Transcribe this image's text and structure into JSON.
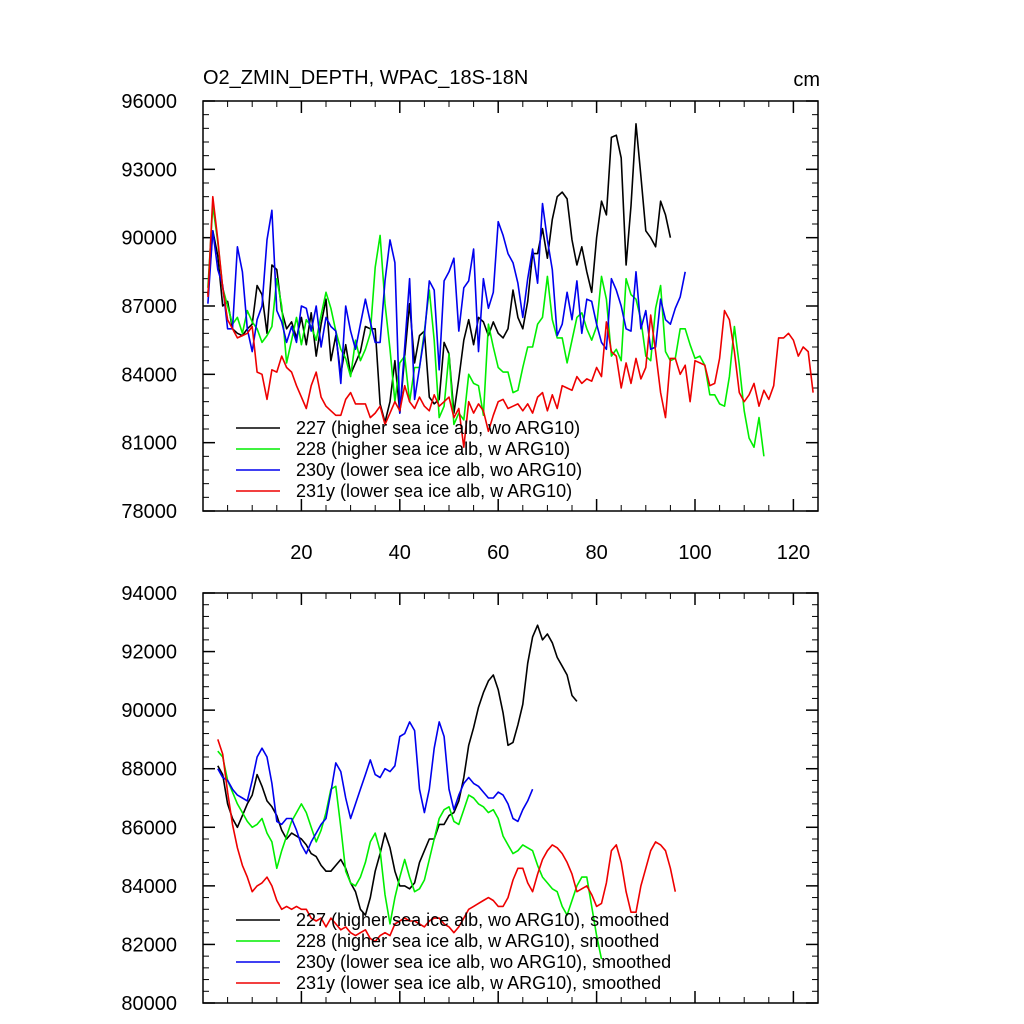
{
  "figure": {
    "title": "O2_ZMIN_DEPTH, WPAC_18S-18N",
    "units": "cm"
  },
  "colors": {
    "227": "#000000",
    "228": "#00ee00",
    "230y": "#0000ee",
    "231y": "#ee0000"
  },
  "chart_data": [
    {
      "type": "line",
      "panel": "top",
      "title": "O2_ZMIN_DEPTH, WPAC_18S-18N",
      "units": "cm",
      "xlim": [
        0,
        125
      ],
      "ylim": [
        78000,
        96000
      ],
      "xticks": [
        20,
        40,
        60,
        80,
        100,
        120
      ],
      "yticks": [
        78000,
        81000,
        84000,
        87000,
        90000,
        93000,
        96000
      ],
      "legend_position": "bottom-left",
      "series": [
        {
          "key": "227",
          "name": "227 (higher sea ice alb, wo ARG10)",
          "color": "#000000",
          "x_start": 1,
          "values": [
            87500,
            90300,
            89200,
            87000,
            87200,
            86000,
            85800,
            85700,
            86000,
            86200,
            87900,
            87500,
            85800,
            88800,
            88600,
            86800,
            86000,
            86300,
            85600,
            86500,
            85300,
            86700,
            84800,
            86200,
            87300,
            84600,
            85700,
            84000,
            85300,
            84000,
            84500,
            85000,
            86100,
            86000,
            86000,
            82700,
            81900,
            82800,
            84600,
            82300,
            84800,
            87100,
            84500,
            85700,
            85900,
            83000,
            82700,
            82900,
            85400,
            84900,
            82300,
            83800,
            85500,
            86400,
            85300,
            86500,
            86300,
            85700,
            86300,
            85800,
            85600,
            86000,
            87700,
            86500,
            86000,
            87200,
            89300,
            89300,
            90400,
            89100,
            90800,
            91800,
            92000,
            91700,
            89900,
            88800,
            89600,
            88500,
            87600,
            90000,
            91600,
            91000,
            94400,
            94500,
            93500,
            88800,
            91400,
            95000,
            92700,
            90300,
            90000,
            89600,
            91600,
            91000,
            90000
          ]
        },
        {
          "key": "228",
          "name": "228 (higher sea ice alb, w ARG10)",
          "color": "#00ee00",
          "x_start": 1,
          "values": [
            87800,
            91400,
            89800,
            87800,
            87000,
            86200,
            86500,
            85800,
            86800,
            86300,
            86000,
            85400,
            85700,
            86100,
            88200,
            87000,
            84500,
            85500,
            86500,
            85300,
            86400,
            86100,
            85500,
            86600,
            87600,
            86900,
            85900,
            85100,
            84700,
            83900,
            85500,
            84600,
            85100,
            85800,
            88700,
            90100,
            87100,
            85100,
            82800,
            84500,
            84800,
            82800,
            84300,
            84300,
            85900,
            87700,
            85500,
            82100,
            82600,
            84900,
            81800,
            82300,
            82000,
            84000,
            83600,
            83500,
            82200,
            86200,
            85200,
            84300,
            84100,
            84100,
            83200,
            83300,
            84300,
            85200,
            85200,
            86200,
            86500,
            88300,
            86400,
            85600,
            85600,
            84500,
            85500,
            86500,
            86700,
            86000,
            85500,
            86100,
            88300,
            87300,
            84800,
            85100,
            84600,
            88200,
            87500,
            87300,
            86400,
            84800,
            84600,
            86900,
            87900,
            85000,
            84600,
            84700,
            86000,
            86000,
            85300,
            84700,
            84800,
            84400,
            83100,
            83100,
            82700,
            82600,
            83900,
            86100,
            84400,
            82400,
            81200,
            80800,
            82100,
            80400
          ]
        },
        {
          "key": "230y",
          "name": "230y (lower sea ice alb, wo ARG10)",
          "color": "#0000ee",
          "x_start": 1,
          "values": [
            87100,
            90300,
            88600,
            87900,
            86000,
            86000,
            89600,
            88500,
            86000,
            85000,
            86400,
            87000,
            89900,
            91200,
            86800,
            86300,
            85400,
            86100,
            85400,
            87000,
            86900,
            85900,
            87000,
            85200,
            86500,
            86100,
            85900,
            83600,
            87000,
            85900,
            85100,
            86200,
            87300,
            86300,
            85400,
            85400,
            88100,
            89900,
            88900,
            82300,
            85200,
            88200,
            82900,
            84300,
            85700,
            88100,
            87700,
            84200,
            88100,
            88500,
            89100,
            85900,
            87800,
            88100,
            89500,
            85000,
            88200,
            86900,
            87600,
            90700,
            90100,
            89300,
            88900,
            88000,
            86500,
            88200,
            89500,
            88000,
            91500,
            89900,
            88600,
            85700,
            86200,
            87600,
            86400,
            88100,
            85800,
            87300,
            87200,
            86200,
            85400,
            85100,
            88200,
            87700,
            87000,
            86000,
            85900,
            88500,
            86000,
            86800,
            85100,
            85200,
            87300,
            86400,
            86200,
            86900,
            87400,
            88500
          ]
        },
        {
          "key": "231y",
          "name": "231y (lower sea ice alb, w ARG10)",
          "color": "#ee0000",
          "x_start": 1,
          "values": [
            87400,
            91800,
            89900,
            87800,
            86400,
            86000,
            85600,
            85700,
            85800,
            86100,
            84100,
            84000,
            82900,
            84200,
            84100,
            84800,
            84300,
            84100,
            83500,
            83000,
            82500,
            83500,
            84100,
            83000,
            82600,
            82400,
            82200,
            82200,
            82900,
            83200,
            82700,
            82700,
            82700,
            82100,
            82300,
            82600,
            81800,
            82300,
            82800,
            82400,
            83500,
            82800,
            82500,
            83000,
            82600,
            82400,
            83100,
            82600,
            82800,
            83000,
            82100,
            82500,
            80800,
            82800,
            82300,
            82700,
            82400,
            81500,
            82200,
            82800,
            82900,
            82500,
            82600,
            82700,
            82400,
            82700,
            82300,
            83000,
            83200,
            82400,
            83100,
            82500,
            83500,
            83400,
            83300,
            83900,
            83600,
            83800,
            83700,
            84300,
            83900,
            86300,
            85000,
            84800,
            83400,
            84500,
            83600,
            84700,
            83800,
            84300,
            86600,
            85000,
            83200,
            82100,
            84700,
            84700,
            84000,
            84400,
            82800,
            84600,
            84500,
            84400,
            83500,
            83600,
            84700,
            86800,
            86400,
            85000,
            83200,
            82800,
            83100,
            83600,
            82600,
            83300,
            82900,
            83500,
            85600,
            85600,
            85800,
            85500,
            84800,
            85200,
            85000,
            83200
          ]
        }
      ]
    },
    {
      "type": "line",
      "panel": "bottom",
      "title": "",
      "xlim": [
        0,
        125
      ],
      "ylim": [
        80000,
        94000
      ],
      "yticks": [
        80000,
        82000,
        84000,
        86000,
        88000,
        90000,
        92000,
        94000
      ],
      "legend_position": "bottom-left",
      "series": [
        {
          "key": "227",
          "name": "227 (higher sea ice alb, wo ARG10), smoothed",
          "color": "#000000",
          "x_start": 3,
          "values": [
            88100,
            87800,
            86800,
            86300,
            86000,
            86400,
            86800,
            87100,
            87800,
            87400,
            86900,
            86700,
            86400,
            85900,
            85600,
            85800,
            85700,
            85600,
            85400,
            85100,
            85000,
            84700,
            84500,
            84500,
            84700,
            84900,
            84600,
            84100,
            83800,
            83200,
            83000,
            83600,
            84500,
            85100,
            85800,
            85300,
            84500,
            84000,
            84000,
            83900,
            84100,
            84800,
            85200,
            85600,
            85600,
            86100,
            86100,
            86400,
            86500,
            86900,
            87700,
            88800,
            89400,
            90100,
            90600,
            91000,
            91200,
            90700,
            89900,
            88800,
            88900,
            89500,
            90200,
            91600,
            92500,
            92900,
            92400,
            92600,
            92300,
            91800,
            91500,
            91200,
            90500,
            90300
          ]
        },
        {
          "key": "228",
          "name": "228 (higher sea ice alb, w ARG10), smoothed",
          "color": "#00ee00",
          "x_start": 3,
          "values": [
            88600,
            88400,
            87600,
            87200,
            86800,
            86500,
            86200,
            86000,
            86100,
            86300,
            85800,
            85500,
            84600,
            85200,
            85700,
            86200,
            86500,
            86800,
            86500,
            86000,
            85500,
            85900,
            86500,
            87300,
            87400,
            86000,
            84500,
            84100,
            84000,
            84300,
            84800,
            85500,
            85800,
            85200,
            83700,
            82700,
            83600,
            84300,
            84900,
            84300,
            83800,
            83900,
            84200,
            84900,
            85600,
            86300,
            86600,
            86700,
            86200,
            86100,
            86600,
            87100,
            87000,
            86800,
            86700,
            86500,
            86600,
            86300,
            85700,
            85400,
            85100,
            85200,
            85400,
            85300,
            85200,
            84700,
            84300,
            84100,
            83900,
            83800,
            83300,
            83000,
            83500,
            84000,
            84300,
            84300,
            83300,
            82300,
            81500
          ]
        },
        {
          "key": "230y",
          "name": "230y (lower sea ice alb, wo ARG10), smoothed",
          "color": "#0000ee",
          "x_start": 3,
          "values": [
            88000,
            87700,
            87600,
            87300,
            87100,
            87000,
            86900,
            87600,
            88400,
            88700,
            88400,
            87500,
            86200,
            86100,
            86300,
            86300,
            85900,
            85400,
            85100,
            85500,
            85800,
            86100,
            86300,
            87200,
            88200,
            87900,
            87000,
            86300,
            86800,
            87300,
            87800,
            88300,
            87800,
            87700,
            88000,
            87900,
            88100,
            89100,
            89200,
            89600,
            89300,
            87300,
            86500,
            87300,
            88700,
            89600,
            89100,
            87300,
            86600,
            87100,
            87500,
            87700,
            87500,
            87400,
            87200,
            87000,
            87000,
            87200,
            87100,
            86800,
            86300,
            86200,
            86600,
            86900,
            87300
          ]
        },
        {
          "key": "231y",
          "name": "231y (lower sea ice alb, w ARG10), smoothed",
          "color": "#ee0000",
          "x_start": 3,
          "values": [
            89000,
            88500,
            87200,
            86100,
            85300,
            84700,
            84300,
            83800,
            84000,
            84100,
            84300,
            84000,
            83500,
            83200,
            83300,
            83200,
            83300,
            83200,
            83200,
            82900,
            82800,
            82900,
            82600,
            82900,
            82700,
            82500,
            82600,
            82400,
            82300,
            82400,
            82500,
            82200,
            82100,
            82300,
            82400,
            82300,
            82700,
            82800,
            82900,
            82800,
            82800,
            82700,
            82600,
            82800,
            82900,
            82900,
            82700,
            82600,
            82400,
            82600,
            82900,
            83200,
            83300,
            83400,
            83500,
            83600,
            83500,
            83300,
            83300,
            83600,
            84200,
            84600,
            84600,
            84100,
            83800,
            84400,
            84900,
            85200,
            85400,
            85300,
            85100,
            84800,
            84400,
            83800,
            83900,
            84000,
            83700,
            83300,
            83400,
            84100,
            85200,
            85400,
            84800,
            83800,
            83100,
            83100,
            84000,
            84600,
            85200,
            85500,
            85400,
            85200,
            84600,
            83800
          ]
        }
      ]
    }
  ]
}
